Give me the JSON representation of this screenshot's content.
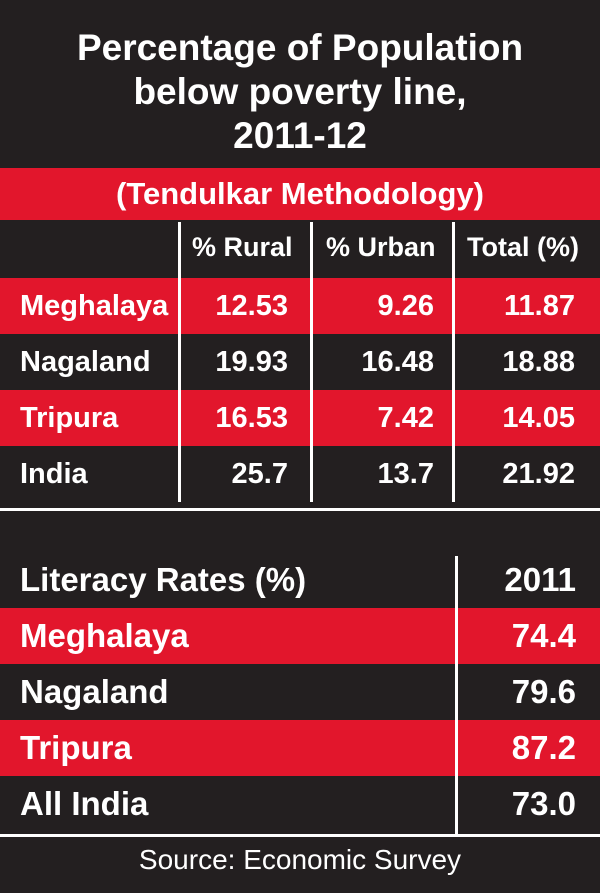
{
  "title": {
    "lines": [
      "Percentage of Population",
      "below poverty line,",
      "2011-12"
    ]
  },
  "subtitle": "(Tendulkar Methodology)",
  "colors": {
    "background": "#231f20",
    "highlight": "#e2162c",
    "text": "#ffffff"
  },
  "chart_data": [
    {
      "type": "table",
      "title": "Percentage of Population below poverty line, 2011-12",
      "subtitle": "(Tendulkar Methodology)",
      "columns": [
        "",
        "% Rural",
        "% Urban",
        "Total (%)"
      ],
      "rows": [
        {
          "label": "Meghalaya",
          "values": [
            "12.53",
            "9.26",
            "11.87"
          ],
          "highlight": true
        },
        {
          "label": "Nagaland",
          "values": [
            "19.93",
            "16.48",
            "18.88"
          ],
          "highlight": false
        },
        {
          "label": "Tripura",
          "values": [
            "16.53",
            "7.42",
            "14.05"
          ],
          "highlight": true
        },
        {
          "label": "India",
          "values": [
            "25.7",
            "13.7",
            "21.92"
          ],
          "highlight": false
        }
      ]
    },
    {
      "type": "table",
      "columns": [
        "Literacy Rates (%)",
        "2011"
      ],
      "rows": [
        {
          "label": "Meghalaya",
          "values": [
            "74.4"
          ],
          "highlight": true
        },
        {
          "label": "Nagaland",
          "values": [
            "79.6"
          ],
          "highlight": false
        },
        {
          "label": "Tripura",
          "values": [
            "87.2"
          ],
          "highlight": true
        },
        {
          "label": "All India",
          "values": [
            "73.0"
          ],
          "highlight": false
        }
      ]
    }
  ],
  "source": "Source: Economic Survey"
}
